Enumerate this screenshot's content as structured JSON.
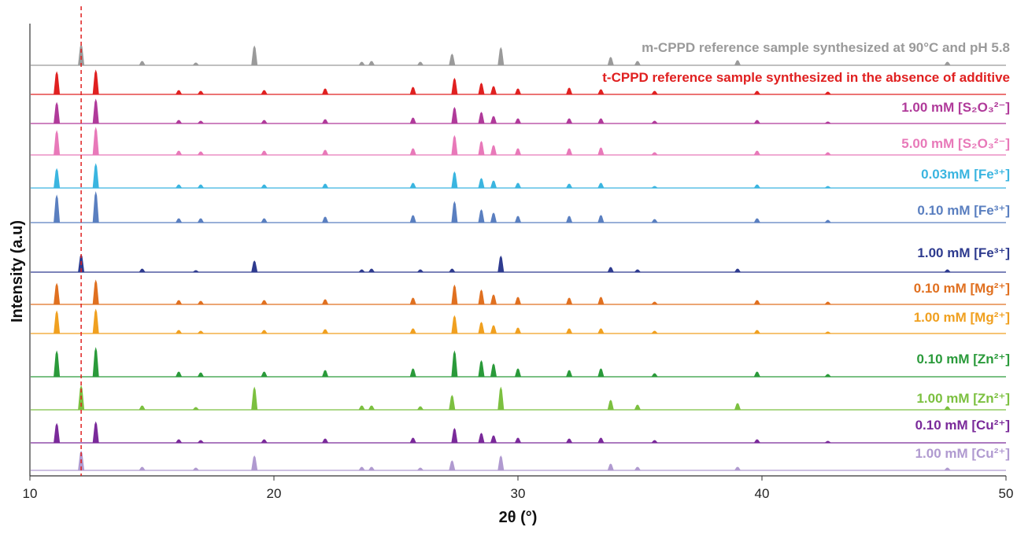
{
  "chart_data": {
    "type": "line",
    "xlabel": "2θ (°)",
    "ylabel": "Intensity (a.u)",
    "xlim": [
      10,
      50
    ],
    "xticks": [
      10,
      20,
      30,
      40,
      50
    ],
    "reference_line": 12.1,
    "reference_color": "#e02020",
    "series": [
      {
        "name": "m-CPPD  reference sample synthesized at 90°C and pH 5.8",
        "color": "#9a9a9a",
        "x": [
          12.1,
          14.6,
          16.8,
          19.2,
          23.6,
          24.0,
          26.0,
          27.3,
          29.3,
          33.8,
          34.9,
          39.0,
          47.6
        ],
        "values": [
          26,
          5,
          3,
          24,
          4,
          5,
          4,
          14,
          22,
          10,
          5,
          6,
          4
        ]
      },
      {
        "name": "t-CPPD  reference sample synthesized in the absence of additive",
        "color": "#e02020",
        "x": [
          11.1,
          12.7,
          16.1,
          17.0,
          19.6,
          22.1,
          25.7,
          27.4,
          28.5,
          29.0,
          30.0,
          32.1,
          33.4,
          35.6,
          39.8,
          42.7
        ],
        "values": [
          28,
          30,
          5,
          4,
          5,
          7,
          9,
          20,
          14,
          10,
          7,
          8,
          6,
          4,
          4,
          3
        ]
      },
      {
        "name": "1.00 mM [S₂O₃²⁻]",
        "color": "#b03a9a",
        "x": [
          11.1,
          12.7,
          16.1,
          17.0,
          19.6,
          22.1,
          25.7,
          27.4,
          28.5,
          29.0,
          30.0,
          32.1,
          33.4,
          35.6,
          39.8,
          42.7
        ],
        "values": [
          26,
          30,
          4,
          3,
          4,
          5,
          7,
          20,
          14,
          9,
          6,
          6,
          6,
          3,
          4,
          2
        ]
      },
      {
        "name": "5.00 mM [S₂O₃²⁻]",
        "color": "#e879b9",
        "x": [
          11.1,
          12.7,
          16.1,
          17.0,
          19.6,
          22.1,
          25.7,
          27.4,
          28.5,
          29.0,
          30.0,
          32.1,
          33.4,
          35.6,
          39.8,
          42.7
        ],
        "values": [
          30,
          34,
          5,
          4,
          5,
          6,
          8,
          24,
          17,
          12,
          8,
          8,
          9,
          3,
          5,
          3
        ]
      },
      {
        "name": "0.03mM [Fe³⁺]",
        "color": "#3ab5e0",
        "x": [
          11.1,
          12.7,
          16.1,
          17.0,
          19.6,
          22.1,
          25.7,
          27.4,
          28.5,
          29.0,
          30.0,
          32.1,
          33.4,
          35.6,
          39.8,
          42.7
        ],
        "values": [
          24,
          30,
          4,
          4,
          4,
          5,
          6,
          20,
          12,
          9,
          6,
          5,
          6,
          2,
          4,
          2
        ]
      },
      {
        "name": "0.10 mM [Fe³⁺]",
        "color": "#5a7fc0",
        "x": [
          11.1,
          12.7,
          16.1,
          17.0,
          19.6,
          22.1,
          25.7,
          27.4,
          28.5,
          29.0,
          30.0,
          32.1,
          33.4,
          35.6,
          39.8,
          42.7
        ],
        "values": [
          34,
          38,
          5,
          5,
          5,
          7,
          9,
          26,
          16,
          12,
          8,
          8,
          9,
          4,
          5,
          3
        ]
      },
      {
        "name": "1.00 mM [Fe³⁺]",
        "color": "#2e3b8f",
        "x": [
          12.1,
          14.6,
          16.8,
          19.2,
          23.6,
          24.0,
          26.0,
          27.3,
          29.3,
          33.8,
          34.9,
          39.0,
          47.6
        ],
        "values": [
          22,
          4,
          2,
          14,
          3,
          4,
          3,
          4,
          20,
          6,
          3,
          4,
          3
        ]
      },
      {
        "name": "0.10 mM [Mg²⁺]",
        "color": "#e07020",
        "x": [
          11.1,
          12.7,
          16.1,
          17.0,
          19.6,
          22.1,
          25.7,
          27.4,
          28.5,
          29.0,
          30.0,
          32.1,
          33.4,
          35.6,
          39.8,
          42.7
        ],
        "values": [
          26,
          30,
          5,
          4,
          5,
          6,
          8,
          24,
          18,
          12,
          9,
          8,
          9,
          3,
          5,
          3
        ]
      },
      {
        "name": "1.00 mM [Mg²⁺]",
        "color": "#f0a020",
        "x": [
          11.1,
          12.7,
          16.1,
          17.0,
          19.6,
          22.1,
          25.7,
          27.4,
          28.5,
          29.0,
          30.0,
          32.1,
          33.4,
          35.6,
          39.8,
          42.7
        ],
        "values": [
          28,
          30,
          4,
          3,
          4,
          5,
          6,
          22,
          14,
          10,
          7,
          6,
          6,
          3,
          4,
          2
        ]
      },
      {
        "name": "0.10 mM [Zn²⁺]",
        "color": "#2a9a3a",
        "x": [
          11.1,
          12.7,
          16.1,
          17.0,
          19.6,
          22.1,
          25.7,
          27.4,
          28.5,
          29.0,
          30.0,
          32.1,
          33.4,
          35.6,
          39.8,
          42.7
        ],
        "values": [
          32,
          36,
          6,
          5,
          6,
          8,
          10,
          32,
          20,
          16,
          10,
          8,
          10,
          4,
          6,
          3
        ]
      },
      {
        "name": "1.00 mM [Zn²⁺]",
        "color": "#7cc040",
        "x": [
          12.1,
          14.6,
          16.8,
          19.2,
          23.6,
          24.0,
          26.0,
          27.3,
          29.3,
          33.8,
          34.9,
          39.0,
          47.6
        ],
        "values": [
          30,
          5,
          3,
          28,
          5,
          5,
          4,
          18,
          28,
          12,
          6,
          8,
          4
        ]
      },
      {
        "name": "0.10 mM [Cu²⁺]",
        "color": "#7a2a9a",
        "x": [
          11.1,
          12.7,
          16.1,
          17.0,
          19.6,
          22.1,
          25.7,
          27.4,
          28.5,
          29.0,
          30.0,
          32.1,
          33.4,
          35.6,
          39.8,
          42.7
        ],
        "values": [
          24,
          26,
          4,
          3,
          4,
          5,
          6,
          18,
          12,
          9,
          6,
          5,
          6,
          3,
          4,
          2
        ]
      },
      {
        "name": "1.00 mM [Cu²⁺]",
        "color": "#b09ad0",
        "x": [
          12.1,
          14.6,
          16.8,
          19.2,
          23.6,
          24.0,
          26.0,
          27.3,
          29.3,
          33.8,
          34.9,
          39.0,
          47.6
        ],
        "values": [
          24,
          4,
          3,
          18,
          4,
          4,
          3,
          12,
          18,
          8,
          4,
          4,
          3
        ]
      }
    ]
  }
}
